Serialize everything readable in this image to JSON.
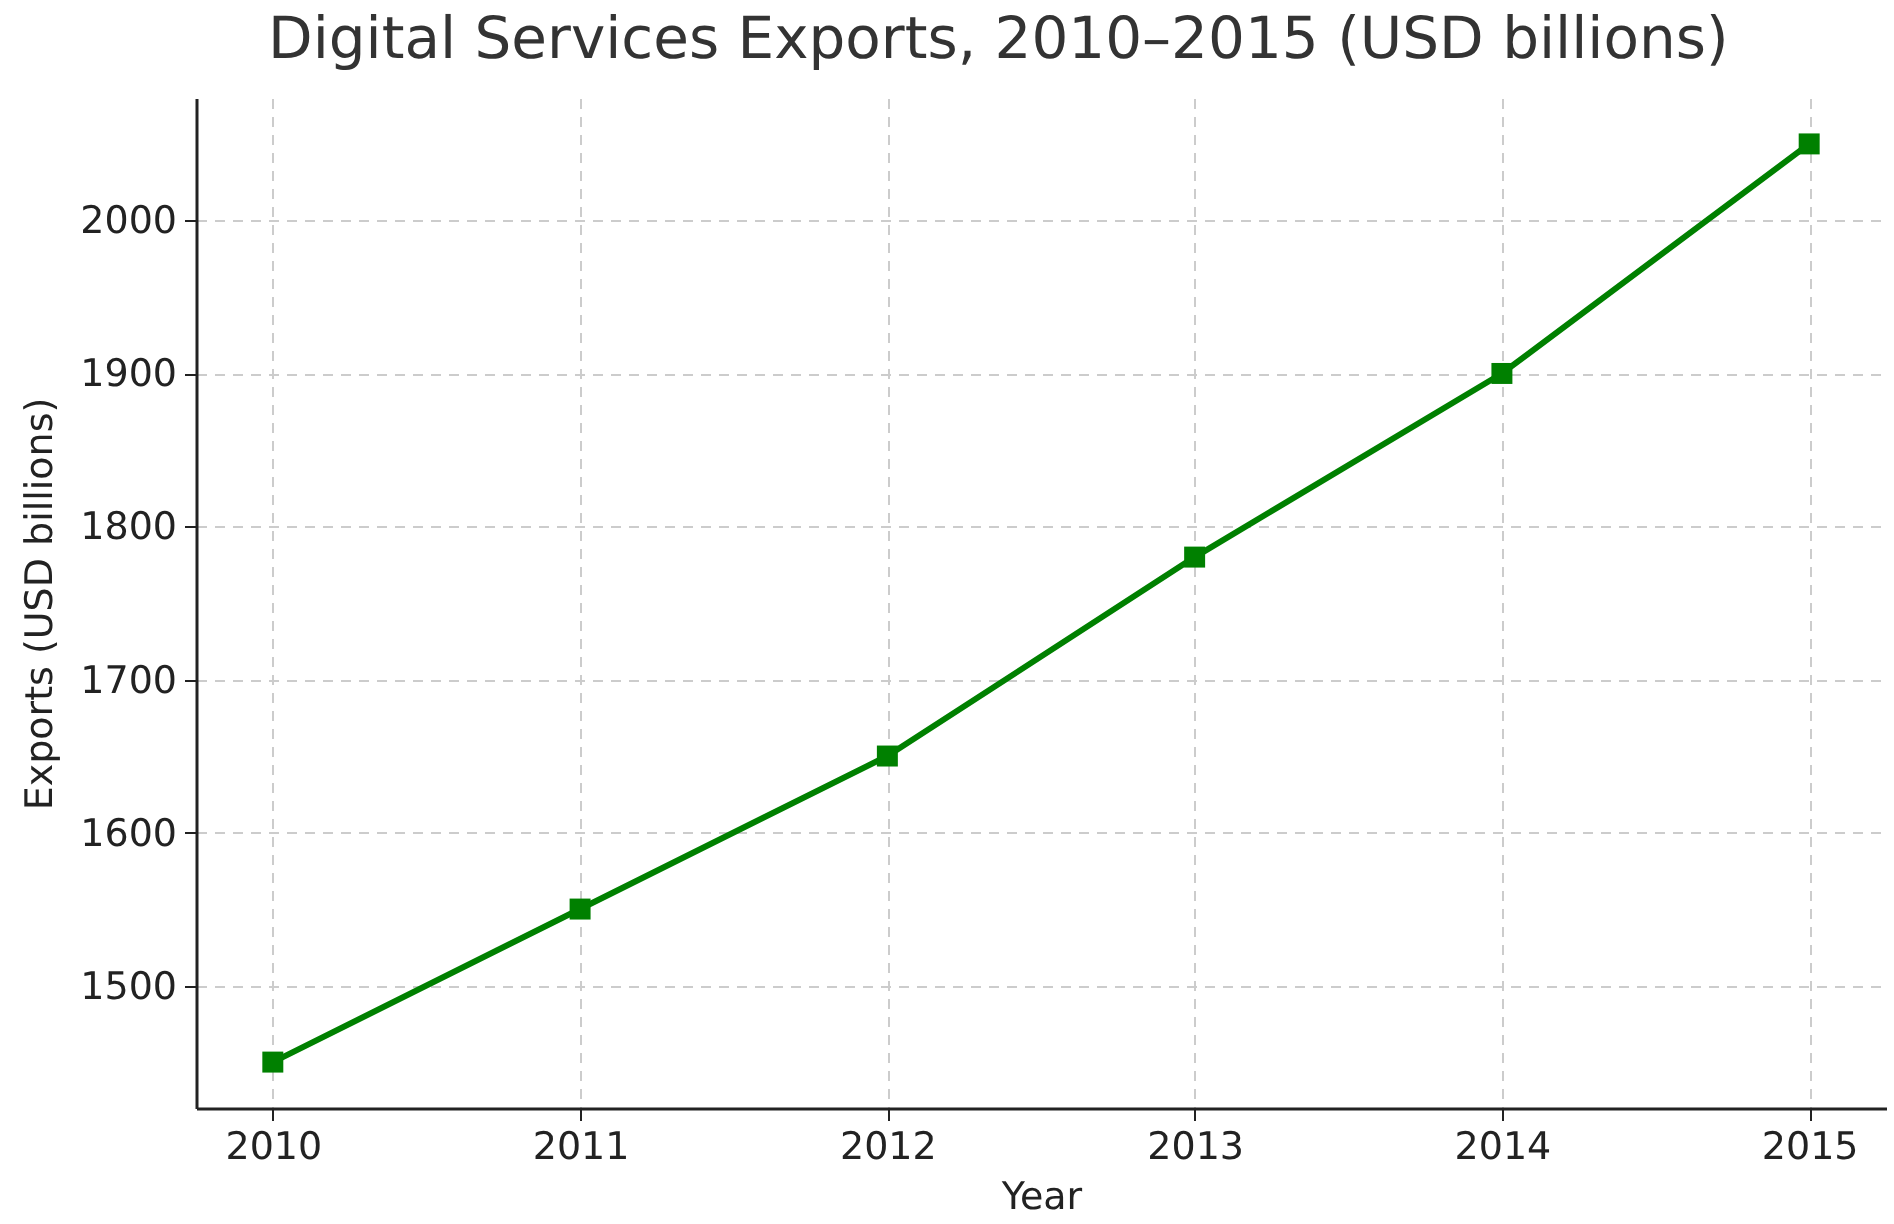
{
  "chart_data": {
    "type": "line",
    "title": "Digital Services Exports, 2010–2015 (USD billions)",
    "xlabel": "Year",
    "ylabel": "Exports (USD billions)",
    "x": [
      2010,
      2011,
      2012,
      2013,
      2014,
      2015
    ],
    "series": [
      {
        "color": "#008000",
        "values": [
          1450,
          1550,
          1650,
          1780,
          1900,
          2050
        ]
      }
    ],
    "xlim": [
      2009.75,
      2015.25
    ],
    "xticks": [
      2010,
      2011,
      2012,
      2013,
      2014,
      2015
    ],
    "ylim": [
      1420,
      2080
    ],
    "yticks": [
      1500,
      1600,
      1700,
      1800,
      1900,
      2000
    ],
    "grid": true,
    "marker": "square",
    "line_style": "solid"
  }
}
